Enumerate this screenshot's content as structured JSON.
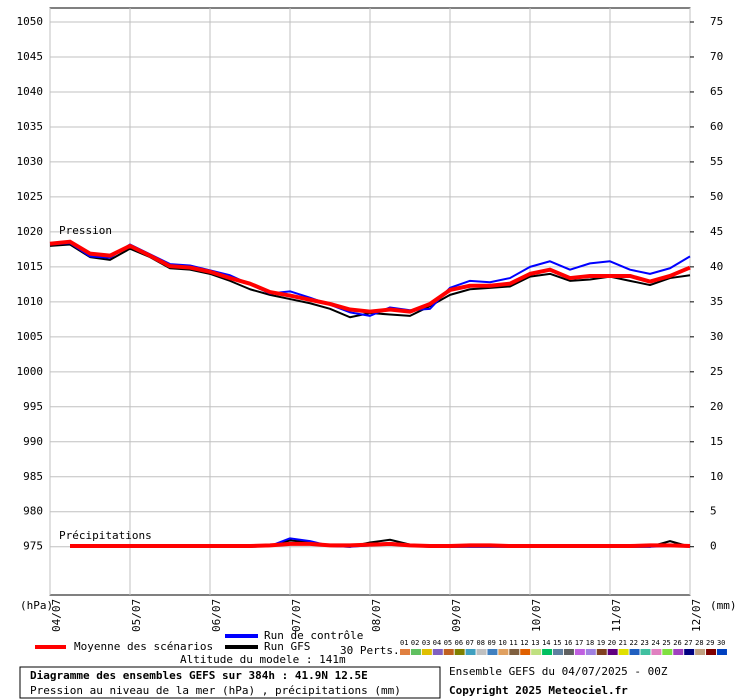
{
  "chart_data": {
    "type": "line",
    "labels": {
      "pressure": "Pression",
      "precip": "Précipitations",
      "y_unit": "(hPa)",
      "y2_unit": "(mm)"
    },
    "x": [
      0,
      12,
      24,
      36,
      48,
      60,
      72,
      84,
      96,
      108,
      120,
      132,
      144,
      156,
      168,
      180,
      192,
      204,
      216,
      228,
      240,
      252,
      264,
      276,
      288,
      300,
      312,
      324,
      336,
      348,
      360,
      372,
      384
    ],
    "xlim": [
      0,
      384
    ],
    "xticks": [
      {
        "value": 0,
        "label": "04/07"
      },
      {
        "value": 48,
        "label": "05/07"
      },
      {
        "value": 96,
        "label": "06/07"
      },
      {
        "value": 144,
        "label": "07/07"
      },
      {
        "value": 192,
        "label": "08/07"
      },
      {
        "value": 240,
        "label": "09/07"
      },
      {
        "value": 288,
        "label": "10/07"
      },
      {
        "value": 336,
        "label": "11/07"
      },
      {
        "value": 384,
        "label": "12/07"
      }
    ],
    "ylim": [
      968.1,
      1052
    ],
    "yticks": [
      975,
      980,
      985,
      990,
      995,
      1000,
      1005,
      1010,
      1015,
      1020,
      1025,
      1030,
      1035,
      1040,
      1045,
      1050
    ],
    "y2lim": [
      -6.9,
      77
    ],
    "y2ticks": [
      0,
      5,
      10,
      15,
      20,
      25,
      30,
      35,
      40,
      45,
      50,
      55,
      60,
      65,
      70,
      75
    ],
    "grid": true,
    "series": [
      {
        "name": "Moyenne des scénarios",
        "color": "#ff0000",
        "values": [
          1018.3,
          1018.6,
          1016.9,
          1016.6,
          1018.0,
          1016.6,
          1015.1,
          1014.9,
          1014.3,
          1013.4,
          1012.6,
          1011.4,
          1010.9,
          1010.3,
          1009.7,
          1008.9,
          1008.6,
          1008.9,
          1008.6,
          1009.7,
          1011.7,
          1012.3,
          1012.3,
          1012.6,
          1014.0,
          1014.6,
          1013.4,
          1013.7,
          1013.7,
          1013.7,
          1012.9,
          1013.7,
          1014.9
        ],
        "precip_values": [
          null,
          0.1,
          0.1,
          0.1,
          0.1,
          0.1,
          0.1,
          0.1,
          0.1,
          0.1,
          0.1,
          0.2,
          0.4,
          0.4,
          0.2,
          0.2,
          0.3,
          0.4,
          0.2,
          0.1,
          0.1,
          0.2,
          0.2,
          0.1,
          0.1,
          0.1,
          0.1,
          0.1,
          0.1,
          0.1,
          0.2,
          0.2,
          0.1
        ]
      },
      {
        "name": "Run de contrôle",
        "color": "#0000ff",
        "values": [
          1018.2,
          1018.4,
          1016.5,
          1016.3,
          1018.2,
          1016.8,
          1015.4,
          1015.2,
          1014.5,
          1013.8,
          1012.5,
          1011.2,
          1011.5,
          1010.6,
          1009.6,
          1008.5,
          1008.0,
          1009.2,
          1008.8,
          1009.0,
          1012.0,
          1013.0,
          1012.8,
          1013.4,
          1015.0,
          1015.8,
          1014.6,
          1015.5,
          1015.8,
          1014.6,
          1014.0,
          1014.8,
          1016.5
        ],
        "precip_values": [
          null,
          0,
          0,
          0.2,
          0,
          0,
          0,
          0,
          0,
          0,
          0,
          0.1,
          1.2,
          0.8,
          0.1,
          0,
          0.2,
          0.4,
          0.1,
          0,
          0,
          0,
          0,
          0,
          0,
          0,
          0,
          0,
          0,
          0,
          0,
          0.1,
          0
        ]
      },
      {
        "name": "Run GFS",
        "color": "#000000",
        "values": [
          1018.0,
          1018.2,
          1016.4,
          1016.0,
          1017.6,
          1016.4,
          1014.8,
          1014.6,
          1014.0,
          1013.0,
          1011.8,
          1011.0,
          1010.4,
          1009.8,
          1009.0,
          1007.8,
          1008.4,
          1008.2,
          1008.0,
          1009.4,
          1011.0,
          1011.8,
          1012.0,
          1012.2,
          1013.6,
          1014.0,
          1013.0,
          1013.2,
          1013.6,
          1013.0,
          1012.4,
          1013.4,
          1013.8
        ],
        "precip_values": [
          null,
          0,
          0,
          0,
          0,
          0,
          0,
          0,
          0,
          0,
          0,
          0.1,
          0.9,
          0.6,
          0.1,
          0,
          0.6,
          1.0,
          0.3,
          0,
          0,
          0,
          0,
          0,
          0,
          0,
          0,
          0,
          0,
          0,
          0,
          0.8,
          0
        ]
      }
    ],
    "perturbations": {
      "label": "30 Perts.",
      "items": [
        {
          "label": "01",
          "color": "#e08040"
        },
        {
          "label": "02",
          "color": "#60c060"
        },
        {
          "label": "03",
          "color": "#e0c000"
        },
        {
          "label": "04",
          "color": "#8060c0"
        },
        {
          "label": "05",
          "color": "#c06020"
        },
        {
          "label": "06",
          "color": "#808000"
        },
        {
          "label": "07",
          "color": "#40a0c0"
        },
        {
          "label": "08",
          "color": "#c0c0c0"
        },
        {
          "label": "09",
          "color": "#4080c0"
        },
        {
          "label": "10",
          "color": "#e0a060"
        },
        {
          "label": "11",
          "color": "#806040"
        },
        {
          "label": "12",
          "color": "#e06000"
        },
        {
          "label": "13",
          "color": "#c0e080"
        },
        {
          "label": "14",
          "color": "#00c060"
        },
        {
          "label": "15",
          "color": "#6080a0"
        },
        {
          "label": "16",
          "color": "#606060"
        },
        {
          "label": "17",
          "color": "#c060e0"
        },
        {
          "label": "18",
          "color": "#a080e0"
        },
        {
          "label": "19",
          "color": "#804020"
        },
        {
          "label": "20",
          "color": "#600080"
        },
        {
          "label": "21",
          "color": "#e0e000"
        },
        {
          "label": "22",
          "color": "#2060c0"
        },
        {
          "label": "23",
          "color": "#40c0a0"
        },
        {
          "label": "24",
          "color": "#e080c0"
        },
        {
          "label": "25",
          "color": "#80e040"
        },
        {
          "label": "26",
          "color": "#a040c0"
        },
        {
          "label": "27",
          "color": "#000080"
        },
        {
          "label": "28",
          "color": "#c0a080"
        },
        {
          "label": "29",
          "color": "#800000"
        },
        {
          "label": "30",
          "color": "#0040c0"
        }
      ]
    },
    "altitude": "Altitude du modele : 141m",
    "title": "Diagramme des ensembles GEFS sur 384h : 41.9N 12.5E",
    "subtitle": "Pression au niveau de la mer (hPa) , précipitations (mm)",
    "run_info": "Ensemble GEFS du 04/07/2025 - 00Z",
    "copyright": "Copyright 2025 Meteociel.fr"
  }
}
